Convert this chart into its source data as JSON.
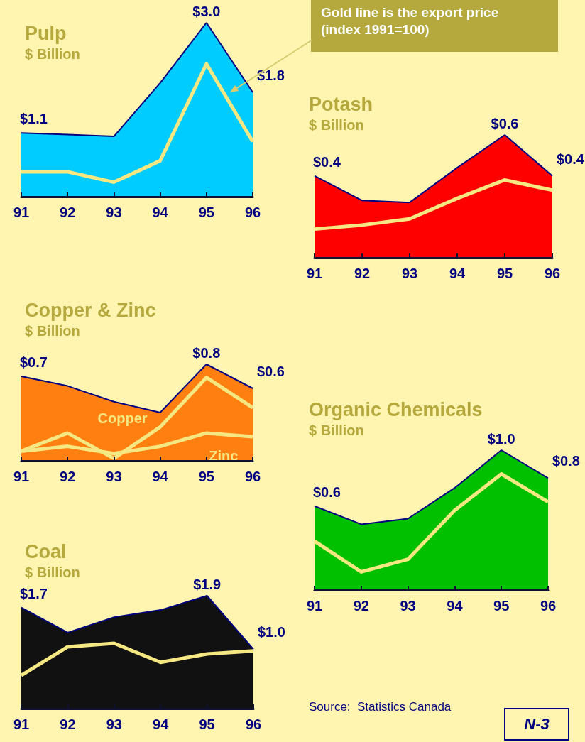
{
  "chart_data": [
    {
      "type": "area",
      "title": "Pulp",
      "subtitle": "$ Billion",
      "tick_labels": "x",
      "categories": [
        "91",
        "92",
        "93",
        "94",
        "95",
        "96"
      ],
      "annotations": [
        "Gold line is the export price (index 1991=100)"
      ],
      "series": [
        {
          "color": "#00ccff",
          "values": [
            1.1,
            1.07,
            1.04,
            1.96,
            3.0,
            1.8
          ],
          "value_labels": [
            "$1.1",
            null,
            null,
            null,
            "$3.0",
            "$1.8"
          ]
        },
        {
          "type": "line",
          "color": "#f5e882",
          "values": [
            0.43,
            0.43,
            0.25,
            0.62,
            2.29,
            0.95
          ]
        }
      ]
    },
    {
      "type": "area",
      "title": "Potash",
      "subtitle": "$ Billion",
      "tick_labels": "x",
      "categories": [
        "91",
        "92",
        "93",
        "94",
        "95",
        "96"
      ],
      "series": [
        {
          "color": "#ff0000",
          "values": [
            0.4,
            0.28,
            0.27,
            0.44,
            0.6,
            0.4
          ],
          "value_labels": [
            "$0.4",
            null,
            null,
            null,
            "$0.6",
            "$0.4"
          ]
        },
        {
          "type": "line",
          "color": "#f5e882",
          "values": [
            0.14,
            0.16,
            0.19,
            0.29,
            0.38,
            0.33
          ]
        }
      ]
    },
    {
      "type": "area",
      "title": "Copper & Zinc",
      "subtitle": "$ Billion",
      "tick_labels": "x",
      "categories": [
        "91",
        "92",
        "93",
        "94",
        "95",
        "96"
      ],
      "series": [
        {
          "color": "#ff7f10",
          "values": [
            0.7,
            0.62,
            0.49,
            0.4,
            0.8,
            0.6
          ],
          "value_labels": [
            "$0.7",
            null,
            null,
            null,
            "$0.8",
            "$0.6"
          ]
        },
        {
          "type": "line",
          "name": "Copper",
          "color": "#f5e882",
          "values": [
            0.08,
            0.23,
            0.02,
            0.28,
            0.69,
            0.44
          ]
        },
        {
          "type": "line",
          "name": "Zinc",
          "color": "#f5e882",
          "values": [
            0.08,
            0.12,
            0.06,
            0.12,
            0.23,
            0.2
          ]
        }
      ]
    },
    {
      "type": "area",
      "title": "Organic Chemicals",
      "subtitle": "$ Billion",
      "tick_labels": "x",
      "categories": [
        "91",
        "92",
        "93",
        "94",
        "95",
        "96"
      ],
      "series": [
        {
          "color": "#00c000",
          "values": [
            0.6,
            0.47,
            0.51,
            0.73,
            1.0,
            0.8
          ],
          "value_labels": [
            "$0.6",
            null,
            null,
            null,
            "$1.0",
            "$0.8"
          ]
        },
        {
          "type": "line",
          "color": "#f5e882",
          "values": [
            0.35,
            0.13,
            0.22,
            0.57,
            0.83,
            0.63
          ]
        }
      ]
    },
    {
      "type": "area",
      "title": "Coal",
      "subtitle": "$ Billion",
      "tick_labels": "x",
      "categories": [
        "91",
        "92",
        "93",
        "94",
        "95",
        "96"
      ],
      "annotations": [
        "Source:  Statistics Canada",
        "N-3"
      ],
      "series": [
        {
          "color": "#111111",
          "values": [
            1.7,
            1.28,
            1.54,
            1.66,
            1.9,
            1.0
          ],
          "value_labels": [
            "$1.7",
            null,
            null,
            null,
            "$1.9",
            "$1.0"
          ]
        },
        {
          "type": "line",
          "color": "#f5e882",
          "values": [
            0.56,
            1.04,
            1.1,
            0.78,
            0.92,
            0.97
          ]
        }
      ]
    }
  ]
}
